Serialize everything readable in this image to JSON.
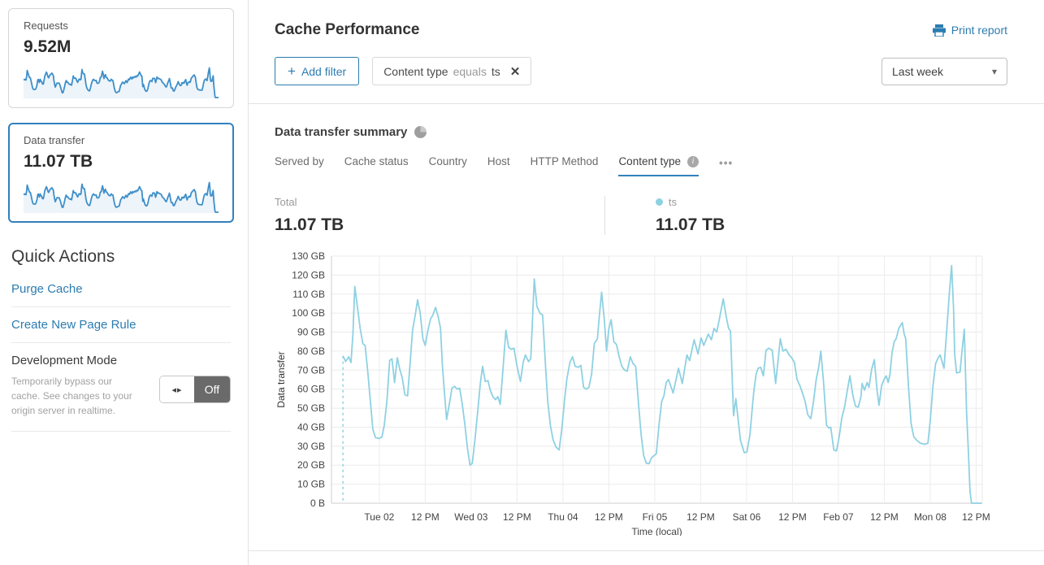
{
  "icons": {
    "plus": "+",
    "close": "✕",
    "caret_down": "▾",
    "ellipsis": "•••",
    "dev_toggle_arrows": "◂▸"
  },
  "colors": {
    "accent_blue": "#2C7CB0",
    "selected_card_border": "#3181BD",
    "chart_line": "#8ED1E2",
    "sparkline_stroke": "#3E8FC9",
    "sparkline_fill": "#EDF4FA",
    "toggle_off_bg": "#6A6A6A"
  },
  "sidebar": {
    "cards": [
      {
        "label": "Requests",
        "value": "9.52M"
      },
      {
        "label": "Data transfer",
        "value": "11.07 TB",
        "selected": true
      }
    ],
    "quick_actions": {
      "title": "Quick Actions",
      "links": [
        "Purge Cache",
        "Create New Page Rule"
      ],
      "development_mode": {
        "title": "Development Mode",
        "description": "Temporarily bypass our cache. See changes to your origin server in realtime.",
        "toggle_label": "Off"
      }
    }
  },
  "header": {
    "title": "Cache Performance",
    "print_label": "Print report"
  },
  "filters": {
    "add_label": "Add filter",
    "chip": {
      "field": "Content type",
      "operator": "equals",
      "value": "ts"
    },
    "range_label": "Last week"
  },
  "summary": {
    "title": "Data transfer summary",
    "tabs": [
      {
        "label": "Served by"
      },
      {
        "label": "Cache status"
      },
      {
        "label": "Country"
      },
      {
        "label": "Host"
      },
      {
        "label": "HTTP Method"
      },
      {
        "label": "Content type",
        "active": true
      }
    ],
    "totals": {
      "total_label": "Total",
      "total_value": "11.07 TB",
      "series_label": "ts",
      "series_value": "11.07 TB"
    }
  },
  "chart_data": {
    "type": "line",
    "title": "Data transfer summary",
    "xlabel": "Time (local)",
    "ylabel": "Data transfer",
    "x_unit": "hours since Mon Feb 01 00:00",
    "x_domain": [
      11.5,
      181.6
    ],
    "y_domain": [
      0,
      130
    ],
    "y_unit": "GB",
    "grid": true,
    "legend": [
      {
        "name": "ts",
        "color": "#8ED1E2"
      }
    ],
    "x_ticks": [
      {
        "t": 24,
        "label": "Tue 02"
      },
      {
        "t": 36,
        "label": "12 PM"
      },
      {
        "t": 48,
        "label": "Wed 03"
      },
      {
        "t": 60,
        "label": "12 PM"
      },
      {
        "t": 72,
        "label": "Thu 04"
      },
      {
        "t": 84,
        "label": "12 PM"
      },
      {
        "t": 96,
        "label": "Fri 05"
      },
      {
        "t": 108,
        "label": "12 PM"
      },
      {
        "t": 120,
        "label": "Sat 06"
      },
      {
        "t": 132,
        "label": "12 PM"
      },
      {
        "t": 144,
        "label": "Feb 07"
      },
      {
        "t": 156,
        "label": "12 PM"
      },
      {
        "t": 168,
        "label": "Mon 08"
      },
      {
        "t": 180,
        "label": "12 PM"
      }
    ],
    "y_ticks": [
      {
        "v": 0,
        "label": "0 B"
      },
      {
        "v": 10,
        "label": "10 GB"
      },
      {
        "v": 20,
        "label": "20 GB"
      },
      {
        "v": 30,
        "label": "30 GB"
      },
      {
        "v": 40,
        "label": "40 GB"
      },
      {
        "v": 50,
        "label": "50 GB"
      },
      {
        "v": 60,
        "label": "60 GB"
      },
      {
        "v": 70,
        "label": "70 GB"
      },
      {
        "v": 80,
        "label": "80 GB"
      },
      {
        "v": 90,
        "label": "90 GB"
      },
      {
        "v": 100,
        "label": "100 GB"
      },
      {
        "v": 110,
        "label": "110 GB"
      },
      {
        "v": 120,
        "label": "120 GB"
      },
      {
        "v": 130,
        "label": "130 GB"
      }
    ],
    "series": [
      {
        "name": "ts",
        "color": "#8ED1E2",
        "start_dashed_drop": true,
        "points": [
          [
            14.5,
            77.5
          ],
          [
            15.2,
            74.5
          ],
          [
            16,
            77
          ],
          [
            16.6,
            74
          ],
          [
            17.1,
            89
          ],
          [
            17.6,
            114
          ],
          [
            18.3,
            103
          ],
          [
            19,
            92
          ],
          [
            19.7,
            84
          ],
          [
            20.3,
            83
          ],
          [
            21,
            69
          ],
          [
            21.7,
            53
          ],
          [
            22.3,
            39
          ],
          [
            23,
            34.5
          ],
          [
            24,
            34
          ],
          [
            24.7,
            35
          ],
          [
            25.3,
            41
          ],
          [
            26,
            54
          ],
          [
            26.7,
            75
          ],
          [
            27.3,
            76
          ],
          [
            28,
            63.5
          ],
          [
            28.7,
            76.5
          ],
          [
            29.4,
            70
          ],
          [
            30,
            66
          ],
          [
            30.7,
            57
          ],
          [
            31.4,
            56.5
          ],
          [
            32,
            72
          ],
          [
            32.7,
            91
          ],
          [
            33.4,
            99
          ],
          [
            34,
            107
          ],
          [
            34.7,
            100
          ],
          [
            35.4,
            86.5
          ],
          [
            36,
            83
          ],
          [
            36.7,
            91
          ],
          [
            37.4,
            97
          ],
          [
            38,
            99
          ],
          [
            38.7,
            103
          ],
          [
            39.4,
            98
          ],
          [
            40,
            92
          ],
          [
            40.5,
            72
          ],
          [
            41,
            59
          ],
          [
            41.6,
            44
          ],
          [
            42.3,
            52
          ],
          [
            43,
            60.5
          ],
          [
            43.7,
            61.5
          ],
          [
            44.4,
            60
          ],
          [
            45,
            60.5
          ],
          [
            45.7,
            52
          ],
          [
            46.4,
            41
          ],
          [
            47,
            29.5
          ],
          [
            47.7,
            20
          ],
          [
            48.3,
            21
          ],
          [
            49,
            33.5
          ],
          [
            49.7,
            48
          ],
          [
            50.4,
            63
          ],
          [
            51,
            72
          ],
          [
            51.7,
            64
          ],
          [
            52.4,
            64.5
          ],
          [
            53,
            59.5
          ],
          [
            53.7,
            56
          ],
          [
            54.4,
            54.5
          ],
          [
            55,
            56
          ],
          [
            55.6,
            52
          ],
          [
            56.3,
            70
          ],
          [
            57.1,
            91
          ],
          [
            57.8,
            82
          ],
          [
            58.5,
            81
          ],
          [
            59.2,
            81.5
          ],
          [
            60,
            72
          ],
          [
            60.9,
            64
          ],
          [
            61.6,
            74
          ],
          [
            62.2,
            78
          ],
          [
            63,
            74.5
          ],
          [
            63.6,
            76
          ],
          [
            64.5,
            118
          ],
          [
            65.2,
            103.5
          ],
          [
            66,
            100
          ],
          [
            66.7,
            99
          ],
          [
            67.4,
            74
          ],
          [
            68,
            54
          ],
          [
            68.7,
            41
          ],
          [
            69.4,
            33.5
          ],
          [
            70.2,
            29.5
          ],
          [
            71,
            28
          ],
          [
            71.7,
            39
          ],
          [
            72.4,
            54
          ],
          [
            73,
            65
          ],
          [
            73.8,
            74
          ],
          [
            74.5,
            77
          ],
          [
            75.2,
            72
          ],
          [
            76,
            71.5
          ],
          [
            76.7,
            72.5
          ],
          [
            77.4,
            61
          ],
          [
            78.1,
            60
          ],
          [
            78.8,
            61
          ],
          [
            79.5,
            68
          ],
          [
            80.2,
            84
          ],
          [
            81,
            86.5
          ],
          [
            81.5,
            98
          ],
          [
            82.1,
            111
          ],
          [
            82.8,
            96.5
          ],
          [
            83.4,
            80
          ],
          [
            84,
            92
          ],
          [
            84.6,
            96.5
          ],
          [
            85.3,
            85
          ],
          [
            86,
            83.5
          ],
          [
            86.7,
            77
          ],
          [
            87.4,
            72
          ],
          [
            88.1,
            70
          ],
          [
            88.8,
            69.5
          ],
          [
            89.6,
            77
          ],
          [
            90.3,
            73.5
          ],
          [
            91,
            72
          ],
          [
            91.7,
            53.5
          ],
          [
            92.4,
            36.5
          ],
          [
            93.1,
            25
          ],
          [
            93.8,
            21
          ],
          [
            94.5,
            20.8
          ],
          [
            95.2,
            24
          ],
          [
            96.4,
            26
          ],
          [
            97.1,
            41
          ],
          [
            97.8,
            53.5
          ],
          [
            98.4,
            56.5
          ],
          [
            99,
            63.5
          ],
          [
            99.6,
            65
          ],
          [
            100.8,
            58
          ],
          [
            102.2,
            71
          ],
          [
            103.2,
            63
          ],
          [
            104.4,
            78
          ],
          [
            105.1,
            75
          ],
          [
            106.3,
            86
          ],
          [
            107.3,
            78.5
          ],
          [
            108.1,
            87
          ],
          [
            108.8,
            83
          ],
          [
            110,
            89
          ],
          [
            110.8,
            86
          ],
          [
            111.5,
            92
          ],
          [
            112.2,
            90
          ],
          [
            112.9,
            97
          ],
          [
            113.9,
            107.5
          ],
          [
            114.6,
            99
          ],
          [
            115.3,
            92
          ],
          [
            115.8,
            90.5
          ],
          [
            116.6,
            46
          ],
          [
            117.2,
            55
          ],
          [
            118.4,
            33
          ],
          [
            119.4,
            26.5
          ],
          [
            120.1,
            27
          ],
          [
            120.9,
            36.5
          ],
          [
            121.4,
            48
          ],
          [
            121.9,
            59
          ],
          [
            122.5,
            68
          ],
          [
            123,
            71
          ],
          [
            123.7,
            71.5
          ],
          [
            124.4,
            67
          ],
          [
            125.1,
            80.5
          ],
          [
            125.8,
            81.5
          ],
          [
            126.7,
            80.5
          ],
          [
            127.6,
            63
          ],
          [
            128.3,
            76.5
          ],
          [
            128.8,
            86.5
          ],
          [
            129.5,
            80
          ],
          [
            130.3,
            81
          ],
          [
            131.1,
            78
          ],
          [
            131.8,
            76.5
          ],
          [
            132.5,
            74
          ],
          [
            133.2,
            65
          ],
          [
            133.9,
            62
          ],
          [
            134.6,
            58
          ],
          [
            135.3,
            53.5
          ],
          [
            136,
            46.5
          ],
          [
            136.8,
            44.5
          ],
          [
            137.5,
            53.5
          ],
          [
            138.2,
            65
          ],
          [
            138.9,
            72
          ],
          [
            139.4,
            80
          ],
          [
            140.1,
            64
          ],
          [
            140.9,
            41
          ],
          [
            141.5,
            39.5
          ],
          [
            142,
            40
          ],
          [
            142.8,
            28
          ],
          [
            143.5,
            27.5
          ],
          [
            144.2,
            35
          ],
          [
            144.9,
            45
          ],
          [
            145.6,
            50.5
          ],
          [
            146.3,
            59
          ],
          [
            147,
            67
          ],
          [
            147.8,
            56.5
          ],
          [
            148.5,
            51
          ],
          [
            149.2,
            50.5
          ],
          [
            149.9,
            56
          ],
          [
            150.2,
            63
          ],
          [
            150.8,
            59.5
          ],
          [
            151.5,
            63.5
          ],
          [
            152,
            61
          ],
          [
            152.7,
            70.5
          ],
          [
            153.4,
            75.5
          ],
          [
            154.1,
            59.5
          ],
          [
            154.6,
            51.5
          ],
          [
            155.3,
            62
          ],
          [
            155.9,
            65
          ],
          [
            156.5,
            67
          ],
          [
            157,
            63.5
          ],
          [
            157.5,
            68
          ],
          [
            158,
            79
          ],
          [
            158.6,
            85
          ],
          [
            159.1,
            86.5
          ],
          [
            159.8,
            92
          ],
          [
            160.7,
            95
          ],
          [
            161.2,
            89
          ],
          [
            161.6,
            86.5
          ],
          [
            162.3,
            62
          ],
          [
            163,
            42
          ],
          [
            163.7,
            35
          ],
          [
            164.5,
            33
          ],
          [
            165.5,
            31.5
          ],
          [
            166.5,
            31
          ],
          [
            167.4,
            31.5
          ],
          [
            168,
            43.5
          ],
          [
            168.7,
            61.5
          ],
          [
            169.4,
            73.5
          ],
          [
            170.1,
            76.5
          ],
          [
            170.6,
            78
          ],
          [
            171.6,
            71
          ],
          [
            172.3,
            90.5
          ],
          [
            173,
            110.5
          ],
          [
            173.6,
            125
          ],
          [
            174.1,
            102
          ],
          [
            174.4,
            78
          ],
          [
            174.9,
            68.5
          ],
          [
            175.8,
            69
          ],
          [
            176.2,
            78
          ],
          [
            176.9,
            91.5
          ],
          [
            177.5,
            48
          ],
          [
            178,
            26.5
          ],
          [
            178.4,
            6.5
          ],
          [
            178.8,
            0
          ],
          [
            179.5,
            0
          ],
          [
            180.5,
            0
          ],
          [
            181.5,
            0
          ]
        ]
      }
    ]
  }
}
